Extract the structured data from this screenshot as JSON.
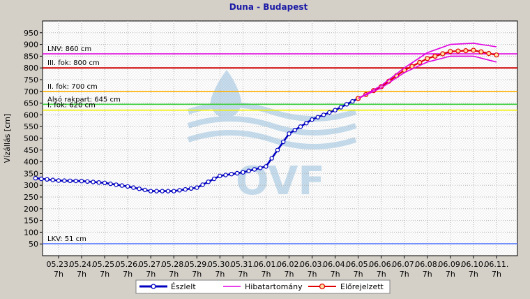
{
  "chart_data": {
    "type": "line",
    "title": "Duna - Budapest",
    "xlabel": "",
    "ylabel": "Vízállás [cm]",
    "ylim": [
      0,
      1000
    ],
    "yticks": [
      50,
      100,
      150,
      200,
      250,
      300,
      350,
      400,
      450,
      500,
      550,
      600,
      650,
      700,
      750,
      800,
      850,
      900,
      950
    ],
    "grid": true,
    "legend_position": "bottom",
    "x_tick_dates": [
      "05.23.",
      "05.24.",
      "05.25.",
      "05.26.",
      "05.27.",
      "05.28.",
      "05.29.",
      "05.30.",
      "05.31.",
      "06.01.",
      "06.02.",
      "06.03.",
      "06.04.",
      "06.05.",
      "06.06.",
      "06.07.",
      "06.08.",
      "06.09.",
      "06.10.",
      "06.11."
    ],
    "x_tick_hour": "7h",
    "reference_lines": [
      {
        "label": "LNV: 860 cm",
        "value": 860,
        "color": "#e000e0"
      },
      {
        "label": "III. fok: 800 cm",
        "value": 800,
        "color": "#d00000"
      },
      {
        "label": "II. fok: 700 cm",
        "value": 700,
        "color": "#ffb000"
      },
      {
        "label": "Alsó rakpart: 645 cm",
        "value": 645,
        "color": "#40d040"
      },
      {
        "label": "I. fok: 620 cm",
        "value": 620,
        "color": "#f0f000"
      },
      {
        "label": "LKV: 51 cm",
        "value": 51,
        "color": "#6080ff"
      }
    ],
    "legend": [
      "Észlelt",
      "Hibatartomány",
      "Előrejelzett"
    ],
    "series": [
      {
        "name": "Észlelt",
        "color": "#0000c0",
        "x": [
          "05.22.",
          "05.23.",
          "05.24.",
          "05.25.",
          "05.26.",
          "05.27.",
          "05.28.",
          "05.29.",
          "05.30.",
          "05.31.",
          "06.01.",
          "06.02.",
          "06.03.",
          "06.04.",
          "06.05."
        ],
        "values": [
          330,
          320,
          318,
          310,
          295,
          275,
          275,
          290,
          340,
          355,
          380,
          520,
          580,
          620,
          670
        ]
      },
      {
        "name": "Előrejelzett",
        "color": "#e00000",
        "x": [
          "06.05.",
          "06.06.",
          "06.07.",
          "06.08.",
          "06.09.",
          "06.10.",
          "06.11."
        ],
        "values": [
          670,
          720,
          790,
          840,
          870,
          875,
          855
        ]
      },
      {
        "name": "Hibatartomány felső",
        "color": "#e000e0",
        "x": [
          "06.05.",
          "06.06.",
          "06.07.",
          "06.08.",
          "06.09.",
          "06.10.",
          "06.11."
        ],
        "values": [
          670,
          725,
          800,
          865,
          900,
          905,
          890
        ]
      },
      {
        "name": "Hibatartomány alsó",
        "color": "#e000e0",
        "x": [
          "06.05.",
          "06.06.",
          "06.07.",
          "06.08.",
          "06.09.",
          "06.10.",
          "06.11."
        ],
        "values": [
          670,
          715,
          780,
          825,
          850,
          850,
          825
        ]
      }
    ]
  }
}
